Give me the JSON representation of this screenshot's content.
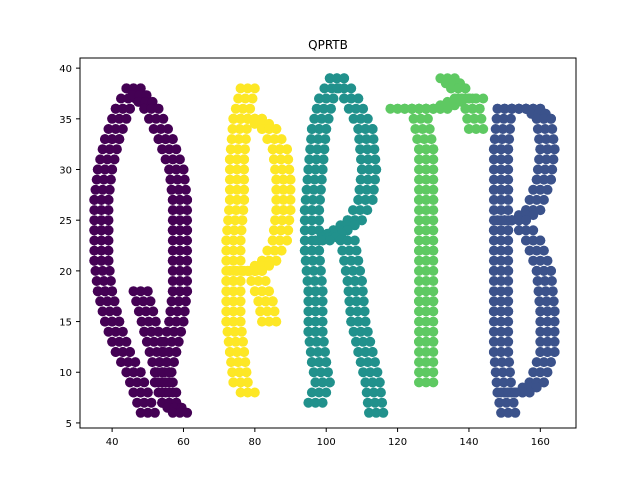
{
  "chart_data": {
    "type": "scatter",
    "title": "QPRTB",
    "xlabel": "",
    "ylabel": "",
    "xlim": [
      31,
      170
    ],
    "ylim": [
      4.5,
      41
    ],
    "xticks": [
      "40",
      "60",
      "80",
      "100",
      "120",
      "140",
      "160"
    ],
    "yticks": [
      "5",
      "10",
      "15",
      "20",
      "25",
      "30",
      "35",
      "40"
    ],
    "grid": false,
    "legend": "none",
    "marker_color_note": "viridis palette per letter",
    "series": [
      {
        "letter": "Q",
        "color": "#440154",
        "strokes": [
          {
            "points": [
              [
                46,
                38
              ],
              [
                43,
                36
              ],
              [
                40,
                33
              ],
              [
                38,
                30
              ],
              [
                37,
                27
              ],
              [
                37,
                24
              ],
              [
                37,
                21
              ],
              [
                38,
                18
              ],
              [
                40,
                15
              ],
              [
                43,
                12
              ],
              [
                46,
                10
              ],
              [
                48,
                8
              ],
              [
                50,
                6
              ]
            ],
            "width": 3
          },
          {
            "points": [
              [
                46,
                38
              ],
              [
                51,
                36
              ],
              [
                55,
                33
              ],
              [
                58,
                30
              ],
              [
                59,
                27
              ],
              [
                59,
                24
              ],
              [
                59,
                21
              ],
              [
                59,
                18
              ],
              [
                58,
                15
              ],
              [
                56,
                12
              ],
              [
                54,
                9
              ],
              [
                56,
                7
              ],
              [
                59,
                6
              ]
            ],
            "width": 3
          },
          {
            "points": [
              [
                48,
                18
              ],
              [
                51,
                14
              ],
              [
                54,
                10
              ],
              [
                56,
                8
              ]
            ],
            "width": 2
          }
        ]
      },
      {
        "letter": "P",
        "color": "#fde725",
        "strokes": [
          {
            "points": [
              [
                78,
                38
              ],
              [
                76,
                35
              ],
              [
                75,
                31
              ],
              [
                75,
                27
              ],
              [
                74,
                23
              ],
              [
                74,
                19
              ],
              [
                74,
                15
              ],
              [
                75,
                12
              ],
              [
                76,
                9
              ],
              [
                78,
                8
              ]
            ],
            "width": 3
          },
          {
            "points": [
              [
                76,
                35
              ],
              [
                80,
                35
              ],
              [
                84,
                34
              ],
              [
                87,
                32
              ],
              [
                88,
                29
              ],
              [
                88,
                26
              ],
              [
                87,
                23
              ],
              [
                84,
                21
              ],
              [
                80,
                20
              ],
              [
                75,
                20
              ]
            ],
            "width": 2
          },
          {
            "points": [
              [
                80,
                20
              ],
              [
                83,
                17
              ],
              [
                84,
                15
              ]
            ],
            "width": 2
          }
        ]
      },
      {
        "letter": "R",
        "color": "#21918c",
        "strokes": [
          {
            "points": [
              [
                103,
                39
              ],
              [
                100,
                37
              ],
              [
                98,
                34
              ],
              [
                97,
                30
              ],
              [
                96,
                26
              ],
              [
                96,
                22
              ],
              [
                97,
                18
              ],
              [
                97,
                14
              ],
              [
                98,
                11
              ],
              [
                99,
                9
              ],
              [
                97,
                7
              ]
            ],
            "width": 3
          },
          {
            "points": [
              [
                103,
                39
              ],
              [
                107,
                37
              ],
              [
                111,
                34
              ],
              [
                112,
                30
              ],
              [
                111,
                27
              ],
              [
                108,
                25
              ],
              [
                104,
                24
              ],
              [
                99,
                23
              ]
            ],
            "width": 3
          },
          {
            "points": [
              [
                106,
                23
              ],
              [
                108,
                19
              ],
              [
                109,
                15
              ],
              [
                111,
                12
              ],
              [
                113,
                9
              ],
              [
                114,
                6
              ]
            ],
            "width": 3
          }
        ]
      },
      {
        "letter": "T",
        "color": "#5ec962",
        "strokes": [
          {
            "points": [
              [
                120,
                36
              ],
              [
                126,
                36
              ],
              [
                132,
                36
              ],
              [
                138,
                37
              ],
              [
                142,
                37
              ]
            ],
            "width": 3
          },
          {
            "points": [
              [
                126,
                36
              ],
              [
                128,
                32
              ],
              [
                128,
                27
              ],
              [
                128,
                22
              ],
              [
                128,
                17
              ],
              [
                128,
                13
              ],
              [
                128,
                9
              ]
            ],
            "width": 3
          },
          {
            "points": [
              [
                134,
                39
              ],
              [
                137,
                38
              ],
              [
                141,
                36
              ],
              [
                142,
                34
              ]
            ],
            "width": 2
          }
        ]
      },
      {
        "letter": "B",
        "color": "#3b528b",
        "strokes": [
          {
            "points": [
              [
                150,
                36
              ],
              [
                149,
                32
              ],
              [
                149,
                28
              ],
              [
                149,
                24
              ],
              [
                149,
                20
              ],
              [
                149,
                16
              ],
              [
                149,
                12
              ],
              [
                150,
                8
              ],
              [
                151,
                6
              ]
            ],
            "width": 3
          },
          {
            "points": [
              [
                150,
                36
              ],
              [
                154,
                36
              ],
              [
                158,
                36
              ],
              [
                161,
                35
              ],
              [
                162,
                32
              ],
              [
                161,
                29
              ],
              [
                158,
                26
              ],
              [
                154,
                25
              ],
              [
                150,
                25
              ]
            ],
            "width": 3
          },
          {
            "points": [
              [
                154,
                25
              ],
              [
                158,
                23
              ],
              [
                161,
                20
              ],
              [
                162,
                16
              ],
              [
                162,
                12
              ],
              [
                159,
                9
              ],
              [
                155,
                8
              ],
              [
                151,
                8
              ]
            ],
            "width": 3
          }
        ]
      }
    ]
  }
}
